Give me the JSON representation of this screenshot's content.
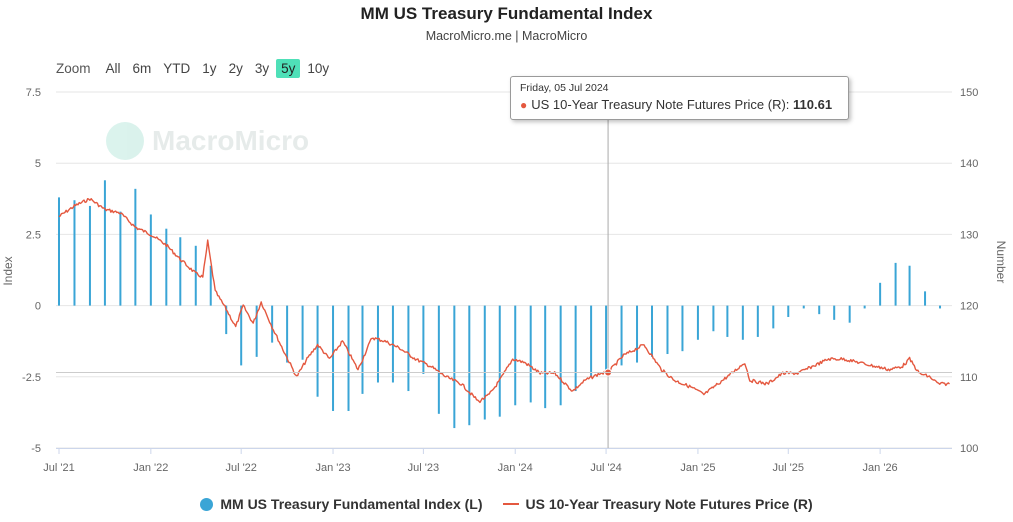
{
  "header": {
    "title": "MM US Treasury Fundamental Index",
    "subtitle": "MacroMicro.me | MacroMicro"
  },
  "zoom": {
    "label": "Zoom",
    "options": [
      "All",
      "6m",
      "YTD",
      "1y",
      "2y",
      "3y",
      "5y",
      "10y"
    ],
    "active": "5y"
  },
  "watermark": "MacroMicro",
  "tooltip": {
    "date": "Friday, 05 Jul 2024",
    "series": "US 10-Year Treasury Note Futures Price (R):",
    "value": "110.61"
  },
  "legend": {
    "items": [
      "MM US Treasury Fundamental Index (L)",
      "US 10-Year Treasury Note Futures Price (R)"
    ]
  },
  "colors": {
    "bars": "#3aa5d6",
    "line": "#e4583f",
    "accent": "#4fe0b8"
  },
  "chart_data": {
    "type": "bar+line",
    "ylabel": "Index",
    "y2label": "Number",
    "ylim": [
      -5,
      7.5
    ],
    "y2lim": [
      100,
      150
    ],
    "yticks": [
      "7.5",
      "5",
      "2.5",
      "0",
      "-2.5",
      "-5"
    ],
    "y2ticks": [
      "150",
      "140",
      "130",
      "120",
      "110",
      "100"
    ],
    "xlim": [
      "2021-06-25",
      "2026-05-25"
    ],
    "xticks": [
      {
        "date": "2021-07-01",
        "label": "Jul '21"
      },
      {
        "date": "2022-01-01",
        "label": "Jan '22"
      },
      {
        "date": "2022-07-01",
        "label": "Jul '22"
      },
      {
        "date": "2023-01-01",
        "label": "Jan '23"
      },
      {
        "date": "2023-07-01",
        "label": "Jul '23"
      },
      {
        "date": "2024-01-01",
        "label": "Jan '24"
      },
      {
        "date": "2024-07-01",
        "label": "Jul '24"
      },
      {
        "date": "2025-01-01",
        "label": "Jan '25"
      },
      {
        "date": "2025-07-01",
        "label": "Jul '25"
      },
      {
        "date": "2026-01-01",
        "label": "Jan '26"
      }
    ],
    "crosshair_date": "2024-07-05",
    "series": [
      {
        "name": "MM US Treasury Fundamental Index (L)",
        "kind": "bar",
        "axis": "left",
        "points": [
          [
            "2021-07-01",
            3.8
          ],
          [
            "2021-08-01",
            3.7
          ],
          [
            "2021-09-01",
            3.5
          ],
          [
            "2021-10-01",
            4.4
          ],
          [
            "2021-11-01",
            3.3
          ],
          [
            "2021-12-01",
            4.1
          ],
          [
            "2022-01-01",
            3.2
          ],
          [
            "2022-02-01",
            2.7
          ],
          [
            "2022-03-01",
            2.4
          ],
          [
            "2022-04-01",
            2.1
          ],
          [
            "2022-05-01",
            1.4
          ],
          [
            "2022-06-01",
            -1.0
          ],
          [
            "2022-07-01",
            -2.1
          ],
          [
            "2022-08-01",
            -1.8
          ],
          [
            "2022-09-01",
            -1.3
          ],
          [
            "2022-10-01",
            -2.0
          ],
          [
            "2022-11-01",
            -1.9
          ],
          [
            "2022-12-01",
            -3.2
          ],
          [
            "2023-01-01",
            -3.7
          ],
          [
            "2023-02-01",
            -3.7
          ],
          [
            "2023-03-01",
            -3.1
          ],
          [
            "2023-04-01",
            -2.7
          ],
          [
            "2023-05-01",
            -2.7
          ],
          [
            "2023-06-01",
            -3.0
          ],
          [
            "2023-07-01",
            -2.4
          ],
          [
            "2023-08-01",
            -3.8
          ],
          [
            "2023-09-01",
            -4.3
          ],
          [
            "2023-10-01",
            -4.2
          ],
          [
            "2023-11-01",
            -4.0
          ],
          [
            "2023-12-01",
            -3.9
          ],
          [
            "2024-01-01",
            -3.5
          ],
          [
            "2024-02-01",
            -3.4
          ],
          [
            "2024-03-01",
            -3.6
          ],
          [
            "2024-04-01",
            -3.5
          ],
          [
            "2024-05-01",
            -3.0
          ],
          [
            "2024-06-01",
            -2.5
          ],
          [
            "2024-07-01",
            -2.3
          ],
          [
            "2024-08-01",
            -2.1
          ],
          [
            "2024-09-01",
            -2.0
          ],
          [
            "2024-10-01",
            -1.8
          ],
          [
            "2024-11-01",
            -1.7
          ],
          [
            "2024-12-01",
            -1.6
          ],
          [
            "2025-01-01",
            -1.2
          ],
          [
            "2025-02-01",
            -0.9
          ],
          [
            "2025-03-01",
            -1.1
          ],
          [
            "2025-04-01",
            -1.2
          ],
          [
            "2025-05-01",
            -1.1
          ],
          [
            "2025-06-01",
            -0.8
          ],
          [
            "2025-07-01",
            -0.4
          ],
          [
            "2025-08-01",
            -0.1
          ],
          [
            "2025-09-01",
            -0.3
          ],
          [
            "2025-10-01",
            -0.5
          ],
          [
            "2025-11-01",
            -0.6
          ],
          [
            "2025-12-01",
            -0.1
          ],
          [
            "2026-01-01",
            0.8
          ],
          [
            "2026-02-01",
            1.5
          ],
          [
            "2026-03-01",
            1.4
          ],
          [
            "2026-04-01",
            0.5
          ],
          [
            "2026-05-01",
            -0.1
          ]
        ]
      },
      {
        "name": "US 10-Year Treasury Note Futures Price (R)",
        "kind": "line",
        "axis": "right",
        "points": [
          [
            "2021-07-01",
            132.5
          ],
          [
            "2021-08-01",
            134.0
          ],
          [
            "2021-09-01",
            135.0
          ],
          [
            "2021-10-01",
            133.5
          ],
          [
            "2021-11-01",
            133.0
          ],
          [
            "2021-12-01",
            131.0
          ],
          [
            "2022-01-01",
            130.0
          ],
          [
            "2022-02-01",
            128.5
          ],
          [
            "2022-03-01",
            126.5
          ],
          [
            "2022-04-01",
            124.5
          ],
          [
            "2022-04-15",
            124.0
          ],
          [
            "2022-04-25",
            129.0
          ],
          [
            "2022-05-10",
            122.0
          ],
          [
            "2022-06-01",
            119.5
          ],
          [
            "2022-06-20",
            117.0
          ],
          [
            "2022-07-05",
            120.0
          ],
          [
            "2022-07-25",
            117.5
          ],
          [
            "2022-08-10",
            120.5
          ],
          [
            "2022-09-01",
            117.0
          ],
          [
            "2022-09-25",
            113.5
          ],
          [
            "2022-10-20",
            110.0
          ],
          [
            "2022-11-10",
            112.5
          ],
          [
            "2022-12-01",
            114.5
          ],
          [
            "2022-12-25",
            112.5
          ],
          [
            "2023-01-20",
            115.0
          ],
          [
            "2023-02-20",
            111.0
          ],
          [
            "2023-03-20",
            115.5
          ],
          [
            "2023-04-15",
            115.0
          ],
          [
            "2023-05-15",
            114.0
          ],
          [
            "2023-06-15",
            112.5
          ],
          [
            "2023-07-15",
            111.5
          ],
          [
            "2023-08-15",
            110.0
          ],
          [
            "2023-09-15",
            109.0
          ],
          [
            "2023-10-20",
            106.5
          ],
          [
            "2023-11-10",
            107.5
          ],
          [
            "2023-12-01",
            109.5
          ],
          [
            "2023-12-27",
            112.5
          ],
          [
            "2024-01-20",
            112.0
          ],
          [
            "2024-02-20",
            110.5
          ],
          [
            "2024-03-20",
            110.5
          ],
          [
            "2024-04-25",
            108.0
          ],
          [
            "2024-05-20",
            109.5
          ],
          [
            "2024-06-20",
            110.5
          ],
          [
            "2024-07-05",
            110.61
          ],
          [
            "2024-08-05",
            113.0
          ],
          [
            "2024-09-15",
            114.5
          ],
          [
            "2024-10-20",
            111.0
          ],
          [
            "2024-11-15",
            109.5
          ],
          [
            "2024-12-20",
            108.5
          ],
          [
            "2025-01-13",
            107.5
          ],
          [
            "2025-02-10",
            109.0
          ],
          [
            "2025-03-10",
            110.5
          ],
          [
            "2025-04-05",
            112.0
          ],
          [
            "2025-04-15",
            109.5
          ],
          [
            "2025-05-20",
            109.0
          ],
          [
            "2025-06-20",
            110.5
          ],
          [
            "2025-07-20",
            110.5
          ],
          [
            "2025-08-20",
            111.5
          ],
          [
            "2025-09-20",
            112.5
          ],
          [
            "2025-10-20",
            112.5
          ],
          [
            "2025-11-20",
            112.0
          ],
          [
            "2025-12-20",
            111.5
          ],
          [
            "2026-01-20",
            111.0
          ],
          [
            "2026-02-15",
            111.5
          ],
          [
            "2026-03-01",
            112.5
          ],
          [
            "2026-03-20",
            110.5
          ],
          [
            "2026-04-10",
            110.0
          ],
          [
            "2026-04-28",
            109.0
          ],
          [
            "2026-05-20",
            109.0
          ]
        ]
      }
    ]
  }
}
